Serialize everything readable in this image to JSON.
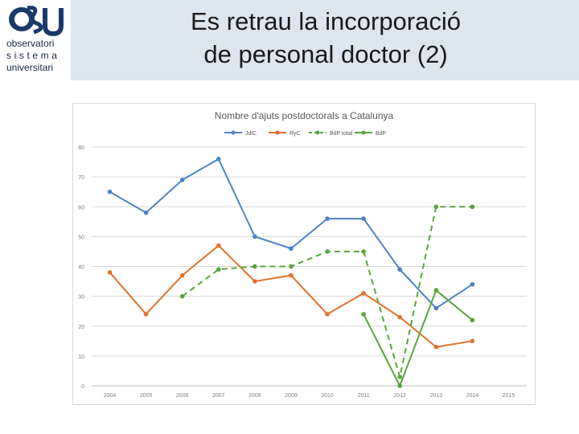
{
  "slide": {
    "title_line1": "Es retrau la incorporació",
    "title_line2": "de personal doctor (2)"
  },
  "logo": {
    "mark": "OSU",
    "line1": "observatori",
    "line2": "sistema",
    "line3": "universitari"
  },
  "colors": {
    "header_band": "#dde5ee",
    "jdc": "#4e84c4",
    "ryc": "#e3712c",
    "bdp": "#5aa53d"
  },
  "chart_data": {
    "type": "line",
    "title": "Nombre d'ajuts postdoctorals a Catalunya",
    "categories": [
      "2004",
      "2005",
      "2006",
      "2007",
      "2008",
      "2009",
      "2010",
      "2011",
      "2012",
      "2013",
      "2014",
      "2015"
    ],
    "ylim": [
      0,
      80
    ],
    "yticks": [
      0,
      10,
      20,
      30,
      40,
      50,
      60,
      70,
      80
    ],
    "grid": true,
    "legend_position": "top",
    "series": [
      {
        "name": "JdlC",
        "color": "#4e84c4",
        "dash": false,
        "values": [
          65,
          58,
          69,
          76,
          50,
          46,
          56,
          56,
          39,
          26,
          34,
          null
        ]
      },
      {
        "name": "RyC",
        "color": "#e3712c",
        "dash": false,
        "values": [
          38,
          24,
          37,
          47,
          35,
          37,
          24,
          31,
          23,
          13,
          15,
          null
        ]
      },
      {
        "name": "BdP total",
        "color": "#5aa53d",
        "dash": true,
        "values": [
          null,
          null,
          30,
          39,
          40,
          40,
          45,
          45,
          3,
          60,
          60,
          null
        ]
      },
      {
        "name": "BdP",
        "color": "#5aa53d",
        "dash": false,
        "values": [
          null,
          null,
          null,
          null,
          null,
          null,
          null,
          24,
          0,
          32,
          22,
          null
        ]
      }
    ]
  }
}
